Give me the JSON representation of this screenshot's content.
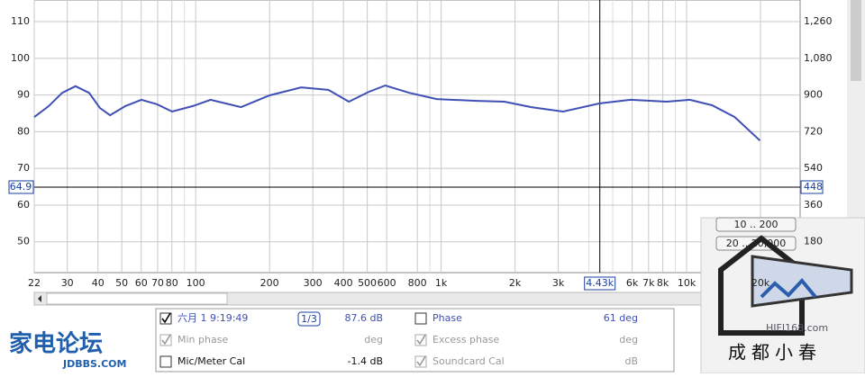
{
  "chart_data": {
    "type": "line",
    "x": [
      22,
      25.2,
      28.6,
      32.4,
      36.8,
      40.7,
      44.8,
      51.7,
      60.1,
      69.5,
      80.2,
      97.4,
      115,
      153,
      200,
      269,
      347,
      421,
      508,
      592,
      743,
      959,
      1400,
      1810,
      2330,
      3140,
      4400,
      5910,
      8290,
      10300,
      12700,
      15700,
      19900
    ],
    "series": [
      {
        "name": "六月 1 9:19:49",
        "color": "#3f4fb5",
        "values": [
          84.0,
          87.0,
          90.6,
          92.4,
          90.6,
          86.5,
          84.5,
          87.0,
          88.7,
          87.5,
          85.5,
          87.0,
          88.7,
          86.7,
          89.9,
          92.1,
          91.4,
          88.2,
          90.9,
          92.6,
          90.6,
          88.9,
          88.4,
          88.2,
          86.7,
          85.5,
          87.7,
          88.7,
          88.2,
          88.7,
          87.2,
          84.0,
          77.6
        ]
      }
    ],
    "xlim": [
      22,
      29000
    ],
    "log_x": true,
    "xticks": [
      22,
      30,
      40,
      50,
      60,
      70,
      80,
      100,
      200,
      300,
      400,
      500,
      600,
      800,
      {
        "value": 1000,
        "label": "1k"
      },
      {
        "value": 2000,
        "label": "2k"
      },
      {
        "value": 3000,
        "label": "3k"
      },
      {
        "value": 6000,
        "label": "6k"
      },
      {
        "value": 7000,
        "label": "7k"
      },
      {
        "value": 8000,
        "label": "8k"
      },
      {
        "value": 10000,
        "label": "10k"
      },
      {
        "value": 20000,
        "label": "20k"
      }
    ],
    "xminor": [
      90,
      900,
      4000,
      5000,
      9000
    ],
    "ylim": [
      41.6,
      115.9
    ],
    "yticks": [
      50,
      60,
      70,
      80,
      90,
      100,
      110
    ],
    "y2lim": [
      28.8,
      1366.2
    ],
    "y2ticks": [
      180,
      360,
      540,
      720,
      900,
      {
        "value": 1080,
        "label": "1,080"
      },
      {
        "value": 1260,
        "label": "1,260"
      }
    ],
    "grid": true,
    "cursor_x": {
      "value": 4430,
      "label": "4.43k"
    },
    "cursor_y": 64.9,
    "cursor_y2": 448
  },
  "legend_panel": {
    "smoothing": "1/3",
    "rows": [
      {
        "label": "六月 1 9:19:49",
        "value": "87.6 dB",
        "checked": true,
        "enabled": true
      },
      {
        "label": "Min phase",
        "value": "deg",
        "checked": true,
        "enabled": false
      },
      {
        "label": "Mic/Meter Cal",
        "value": "-1.4 dB",
        "checked": false,
        "enabled": true
      },
      {
        "label": "Phase",
        "value": "61 deg",
        "checked": false,
        "enabled": true
      },
      {
        "label": "Excess phase",
        "value": "deg",
        "checked": true,
        "enabled": false
      },
      {
        "label": "Soundcard Cal",
        "value": "dB",
        "checked": true,
        "enabled": false
      }
    ]
  },
  "buttons": [
    "10 .. 200",
    "20 .. 20,000"
  ],
  "watermarks": {
    "left": "家电论坛",
    "left_url": "JDBBS.COM",
    "right_url": "HIFI168.com",
    "right": "成都小春"
  }
}
